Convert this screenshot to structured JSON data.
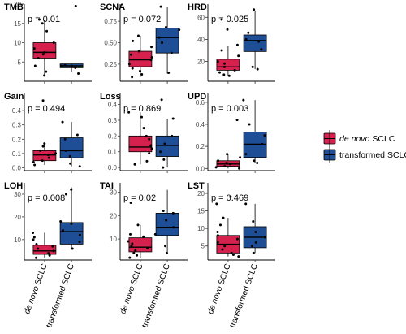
{
  "chart_data": [
    {
      "type": "box",
      "title": "TMB",
      "annotation": "p = 0.01",
      "ylim": [
        0,
        20
      ],
      "yticks": [
        5,
        10,
        15,
        20
      ],
      "groups": [
        {
          "name": "de novo SCLC",
          "q1": 6,
          "median": 7.5,
          "q3": 10,
          "whisker_low": 1.5,
          "whisker_high": 16,
          "points": [
            1.5,
            2.5,
            4,
            6,
            7,
            7.5,
            8.5,
            10,
            13,
            15,
            16
          ]
        },
        {
          "name": "transformed SCLC",
          "q1": 3.5,
          "median": 4,
          "q3": 4.5,
          "whisker_low": 2.5,
          "whisker_high": 4.5,
          "points": [
            2,
            3.5,
            4,
            4,
            4.2,
            19.5
          ]
        }
      ]
    },
    {
      "type": "box",
      "title": "SCNA",
      "annotation": "p = 0.072",
      "ylim": [
        0.05,
        0.95
      ],
      "yticks": [
        0.25,
        0.5,
        0.75
      ],
      "groups": [
        {
          "name": "de novo SCLC",
          "q1": 0.22,
          "median": 0.3,
          "q3": 0.4,
          "whisker_low": 0.1,
          "whisker_high": 0.58,
          "points": [
            0.1,
            0.13,
            0.17,
            0.2,
            0.25,
            0.3,
            0.33,
            0.36,
            0.4,
            0.45,
            0.52,
            0.58
          ]
        },
        {
          "name": "transformed SCLC",
          "q1": 0.38,
          "median": 0.56,
          "q3": 0.67,
          "whisker_low": 0.14,
          "whisker_high": 0.92,
          "points": [
            0.15,
            0.38,
            0.5,
            0.56,
            0.65,
            0.68,
            0.92
          ]
        }
      ]
    },
    {
      "type": "box",
      "title": "HRD",
      "annotation": "p = 0.025",
      "ylim": [
        2,
        72
      ],
      "yticks": [
        20,
        40,
        60
      ],
      "groups": [
        {
          "name": "de novo SCLC",
          "q1": 12,
          "median": 15,
          "q3": 22,
          "whisker_low": 7,
          "whisker_high": 34,
          "points": [
            7,
            8,
            10,
            12,
            15,
            18,
            20,
            25,
            30,
            35,
            49,
            58
          ]
        },
        {
          "name": "transformed SCLC",
          "q1": 29,
          "median": 39,
          "q3": 44,
          "whisker_low": 13,
          "whisker_high": 66,
          "points": [
            13,
            15,
            31,
            38,
            40,
            46,
            67
          ]
        }
      ]
    },
    {
      "type": "box",
      "title": "Gain",
      "annotation": "p = 0.494",
      "ylim": [
        -0.02,
        0.52
      ],
      "yticks": [
        0.0,
        0.1,
        0.2,
        0.3,
        0.4
      ],
      "groups": [
        {
          "name": "de novo SCLC",
          "q1": 0.05,
          "median": 0.09,
          "q3": 0.12,
          "whisker_low": 0.02,
          "whisker_high": 0.17,
          "points": [
            0.02,
            0.04,
            0.05,
            0.07,
            0.09,
            0.1,
            0.12,
            0.15,
            0.17,
            0.47
          ]
        },
        {
          "name": "transformed SCLC",
          "q1": 0.07,
          "median": 0.12,
          "q3": 0.21,
          "whisker_low": 0.01,
          "whisker_high": 0.32,
          "points": [
            0.01,
            0.03,
            0.08,
            0.12,
            0.2,
            0.23,
            0.32
          ]
        }
      ]
    },
    {
      "type": "box",
      "title": "Loss",
      "annotation": "p = 0.869",
      "ylim": [
        -0.02,
        0.47
      ],
      "yticks": [
        0.0,
        0.1,
        0.2,
        0.3,
        0.4
      ],
      "groups": [
        {
          "name": "de novo SCLC",
          "q1": 0.1,
          "median": 0.13,
          "q3": 0.2,
          "whisker_low": 0.02,
          "whisker_high": 0.35,
          "points": [
            0.02,
            0.04,
            0.09,
            0.12,
            0.14,
            0.18,
            0.2,
            0.25,
            0.32,
            0.35
          ]
        },
        {
          "name": "transformed SCLC",
          "q1": 0.07,
          "median": 0.14,
          "q3": 0.2,
          "whisker_low": 0.0,
          "whisker_high": 0.31,
          "points": [
            0.0,
            0.05,
            0.1,
            0.15,
            0.2,
            0.31,
            0.43
          ]
        }
      ]
    },
    {
      "type": "box",
      "title": "UPD",
      "annotation": "p = 0.003",
      "ylim": [
        -0.02,
        0.68
      ],
      "yticks": [
        0.0,
        0.2,
        0.4,
        0.6
      ],
      "groups": [
        {
          "name": "de novo SCLC",
          "q1": 0.02,
          "median": 0.04,
          "q3": 0.07,
          "whisker_low": 0.0,
          "whisker_high": 0.13,
          "points": [
            0.0,
            0.01,
            0.02,
            0.04,
            0.05,
            0.07,
            0.1,
            0.13,
            0.44
          ]
        },
        {
          "name": "transformed SCLC",
          "q1": 0.1,
          "median": 0.22,
          "q3": 0.33,
          "whisker_low": 0.05,
          "whisker_high": 0.62,
          "points": [
            0.05,
            0.07,
            0.13,
            0.22,
            0.3,
            0.4,
            0.62
          ]
        }
      ]
    },
    {
      "type": "box",
      "title": "LOH",
      "annotation": "p = 0.008",
      "ylim": [
        1,
        35
      ],
      "yticks": [
        10,
        20,
        30
      ],
      "groups": [
        {
          "name": "de novo SCLC",
          "q1": 3.5,
          "median": 5,
          "q3": 7.5,
          "whisker_low": 2,
          "whisker_high": 13,
          "points": [
            2,
            3,
            3.5,
            4,
            5,
            6,
            7,
            8,
            10,
            11,
            13
          ]
        },
        {
          "name": "transformed SCLC",
          "q1": 8,
          "median": 13.5,
          "q3": 17.5,
          "whisker_low": 6,
          "whisker_high": 33,
          "points": [
            6,
            9,
            12,
            14,
            17,
            18,
            30,
            32
          ]
        }
      ]
    },
    {
      "type": "box",
      "title": "TAI",
      "annotation": "p = 0.02",
      "ylim": [
        1,
        34
      ],
      "yticks": [
        10,
        20,
        30
      ],
      "groups": [
        {
          "name": "de novo SCLC",
          "q1": 4.5,
          "median": 6.5,
          "q3": 10.5,
          "whisker_low": 2,
          "whisker_high": 16,
          "points": [
            2,
            3,
            4,
            5,
            6,
            7,
            8,
            9,
            11,
            12,
            16,
            25.5
          ]
        },
        {
          "name": "transformed SCLC",
          "q1": 11.5,
          "median": 15,
          "q3": 21,
          "whisker_low": 4,
          "whisker_high": 31,
          "points": [
            4,
            7,
            12,
            15,
            18,
            21,
            22
          ]
        }
      ]
    },
    {
      "type": "box",
      "title": "LST",
      "annotation": "p = 0.469",
      "ylim": [
        1,
        23
      ],
      "yticks": [
        5,
        10,
        15,
        20
      ],
      "groups": [
        {
          "name": "de novo SCLC",
          "q1": 3,
          "median": 5.5,
          "q3": 8,
          "whisker_low": 2,
          "whisker_high": 13,
          "points": [
            2,
            2.5,
            3,
            4,
            5,
            6,
            7,
            8,
            9,
            11,
            13,
            17,
            19
          ]
        },
        {
          "name": "transformed SCLC",
          "q1": 4.5,
          "median": 7.5,
          "q3": 10.5,
          "whisker_low": 3,
          "whisker_high": 17,
          "points": [
            3,
            5,
            6,
            7.5,
            9,
            12,
            17
          ]
        }
      ]
    }
  ],
  "legend": {
    "placement": "right",
    "entries": [
      {
        "label_em": "de novo",
        "label": "SCLC",
        "color": "#D6214E"
      },
      {
        "label_em": "",
        "label": "transformed SCLC",
        "color": "#1D4E96"
      }
    ]
  },
  "x_tick_labels": [
    {
      "em": "de novo",
      "text": "SCLC"
    },
    {
      "em": "",
      "text": "transformed SCLC"
    }
  ],
  "colors": {
    "de_novo": "#D6214E",
    "transformed": "#1D4E96",
    "points": "#000000",
    "axis": "#000000"
  }
}
